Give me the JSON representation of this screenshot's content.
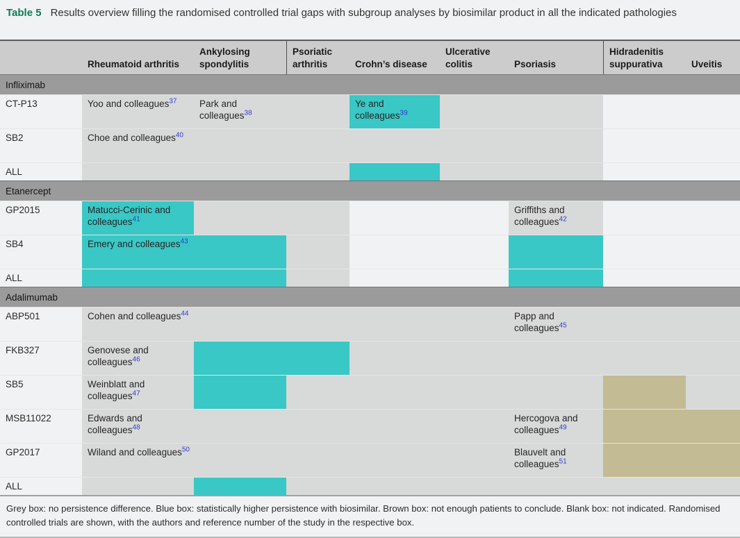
{
  "caption": {
    "label": "Table 5",
    "text": "Results overview filling the randomised controlled trial gaps with subgroup analyses by biosimilar product in all the indicated pathologies"
  },
  "colors": {
    "grey_box": "#d8d9d9",
    "teal_box": "#39c8c6",
    "brown_box": "#c3bb93",
    "header_bg": "#cccccc",
    "group_band_bg": "#9b9b9b",
    "page_bg": "#f1f2f3",
    "caption_green": "#0e7c54",
    "reference_blue": "#3339d4"
  },
  "columns": [
    "",
    "Rheumatoid arthritis",
    "Ankylosing spondylitis",
    "Psoriatic arthritis",
    "Crohn’s disease",
    "Ulcerative colitis",
    "Psoriasis",
    "Hidradenitis suppurativa",
    "Uveitis"
  ],
  "column_keys": [
    "label",
    "ra",
    "as",
    "psa",
    "cd",
    "uc",
    "pso",
    "hs",
    "uv"
  ],
  "groups": [
    {
      "name": "Infliximab",
      "rows": [
        {
          "label": "CT-P13",
          "small": false,
          "cells": [
            {
              "color": "grey",
              "author": "Yoo and colleagues",
              "ref": "37"
            },
            {
              "color": "grey",
              "author": "Park and colleagues",
              "ref": "38"
            },
            {
              "color": "grey"
            },
            {
              "color": "teal",
              "author": "Ye and colleagues",
              "ref": "39"
            },
            {
              "color": "grey"
            },
            {
              "color": "grey"
            },
            {
              "color": "blank"
            },
            {
              "color": "blank"
            }
          ]
        },
        {
          "label": "SB2",
          "small": false,
          "cells": [
            {
              "color": "grey",
              "author": "Choe and colleagues",
              "ref": "40"
            },
            {
              "color": "grey"
            },
            {
              "color": "grey"
            },
            {
              "color": "grey"
            },
            {
              "color": "grey"
            },
            {
              "color": "grey"
            },
            {
              "color": "blank"
            },
            {
              "color": "blank"
            }
          ]
        },
        {
          "label": "ALL",
          "small": true,
          "cells": [
            {
              "color": "grey"
            },
            {
              "color": "grey"
            },
            {
              "color": "grey"
            },
            {
              "color": "teal"
            },
            {
              "color": "grey"
            },
            {
              "color": "grey"
            },
            {
              "color": "blank"
            },
            {
              "color": "blank"
            }
          ]
        }
      ]
    },
    {
      "name": "Etanercept",
      "rows": [
        {
          "label": "GP2015",
          "small": false,
          "cells": [
            {
              "color": "teal",
              "author": "Matucci-Cerinic and colleagues",
              "ref": "41"
            },
            {
              "color": "grey"
            },
            {
              "color": "grey"
            },
            {
              "color": "blank"
            },
            {
              "color": "blank"
            },
            {
              "color": "grey",
              "author": "Griffiths and colleagues",
              "ref": "42"
            },
            {
              "color": "blank"
            },
            {
              "color": "blank"
            }
          ]
        },
        {
          "label": "SB4",
          "small": false,
          "cells": [
            {
              "color": "teal",
              "author": "Emery and colleagues",
              "ref": "43"
            },
            {
              "color": "teal"
            },
            {
              "color": "grey"
            },
            {
              "color": "blank"
            },
            {
              "color": "blank"
            },
            {
              "color": "teal"
            },
            {
              "color": "blank"
            },
            {
              "color": "blank"
            }
          ]
        },
        {
          "label": "ALL",
          "small": true,
          "cells": [
            {
              "color": "teal"
            },
            {
              "color": "teal"
            },
            {
              "color": "grey"
            },
            {
              "color": "blank"
            },
            {
              "color": "blank"
            },
            {
              "color": "teal"
            },
            {
              "color": "blank"
            },
            {
              "color": "blank"
            }
          ]
        }
      ]
    },
    {
      "name": "Adalimumab",
      "rows": [
        {
          "label": "ABP501",
          "small": false,
          "cells": [
            {
              "color": "grey",
              "author": "Cohen and colleagues",
              "ref": "44"
            },
            {
              "color": "grey"
            },
            {
              "color": "grey"
            },
            {
              "color": "grey"
            },
            {
              "color": "grey"
            },
            {
              "color": "grey",
              "author": "Papp and colleagues",
              "ref": "45"
            },
            {
              "color": "grey"
            },
            {
              "color": "grey"
            }
          ]
        },
        {
          "label": "FKB327",
          "small": false,
          "cells": [
            {
              "color": "grey",
              "author": "Genovese and colleagues",
              "ref": "46"
            },
            {
              "color": "teal"
            },
            {
              "color": "teal"
            },
            {
              "color": "grey"
            },
            {
              "color": "grey"
            },
            {
              "color": "grey"
            },
            {
              "color": "grey"
            },
            {
              "color": "grey"
            }
          ]
        },
        {
          "label": "SB5",
          "small": false,
          "cells": [
            {
              "color": "grey",
              "author": "Weinblatt and colleagues",
              "ref": "47"
            },
            {
              "color": "teal"
            },
            {
              "color": "grey"
            },
            {
              "color": "grey"
            },
            {
              "color": "grey"
            },
            {
              "color": "grey"
            },
            {
              "color": "brown"
            },
            {
              "color": "grey"
            }
          ]
        },
        {
          "label": "MSB11022",
          "small": false,
          "cells": [
            {
              "color": "grey",
              "author": "Edwards and colleagues",
              "ref": "48"
            },
            {
              "color": "grey"
            },
            {
              "color": "grey"
            },
            {
              "color": "grey"
            },
            {
              "color": "grey"
            },
            {
              "color": "grey",
              "author": "Hercogova and colleagues",
              "ref": "49"
            },
            {
              "color": "brown"
            },
            {
              "color": "brown"
            }
          ]
        },
        {
          "label": "GP2017",
          "small": false,
          "cells": [
            {
              "color": "grey",
              "author": "Wiland and colleagues",
              "ref": "50"
            },
            {
              "color": "grey"
            },
            {
              "color": "grey"
            },
            {
              "color": "grey"
            },
            {
              "color": "grey"
            },
            {
              "color": "grey",
              "author": "Blauvelt and colleagues",
              "ref": "51"
            },
            {
              "color": "brown"
            },
            {
              "color": "brown"
            }
          ]
        },
        {
          "label": "ALL",
          "small": true,
          "cells": [
            {
              "color": "grey"
            },
            {
              "color": "teal"
            },
            {
              "color": "grey"
            },
            {
              "color": "grey"
            },
            {
              "color": "grey"
            },
            {
              "color": "grey"
            },
            {
              "color": "grey"
            },
            {
              "color": "grey"
            }
          ]
        }
      ]
    }
  ],
  "footnote": "Grey box: no persistence difference. Blue box: statistically higher persistence with biosimilar. Brown box: not enough patients to conclude. Blank box: not indicated. Randomised controlled trials are shown, with the authors and reference number of the study in the respective box."
}
